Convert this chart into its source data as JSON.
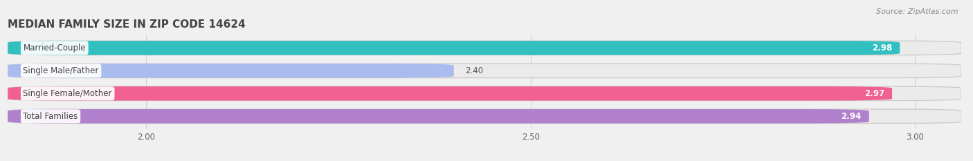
{
  "title": "MEDIAN FAMILY SIZE IN ZIP CODE 14624",
  "source": "Source: ZipAtlas.com",
  "categories": [
    "Married-Couple",
    "Single Male/Father",
    "Single Female/Mother",
    "Total Families"
  ],
  "values": [
    2.98,
    2.4,
    2.97,
    2.94
  ],
  "bar_colors": [
    "#32bfbf",
    "#aabbee",
    "#f06090",
    "#b080cc"
  ],
  "value_inside_bar": [
    true,
    false,
    true,
    true
  ],
  "value_colors_inside": [
    "#ffffff",
    "#666666",
    "#ffffff",
    "#ffffff"
  ],
  "xlim_min": 1.82,
  "xlim_max": 3.06,
  "x_axis_min": 1.82,
  "xticks": [
    2.0,
    2.5,
    3.0
  ],
  "background_color": "#f0f0f0",
  "bar_bg_color": "#e0e0e0",
  "title_fontsize": 11,
  "label_fontsize": 8.5,
  "value_fontsize": 8.5,
  "source_fontsize": 8,
  "bar_height": 0.62,
  "n_bars": 4
}
